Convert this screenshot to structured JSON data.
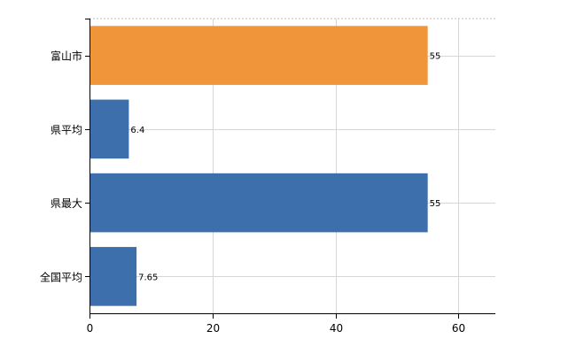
{
  "chart_data": {
    "type": "bar",
    "orientation": "horizontal",
    "categories": [
      "富山市",
      "県平均",
      "県最大",
      "全国平均"
    ],
    "values": [
      55,
      6.4,
      55,
      7.65
    ],
    "data_labels": [
      "55",
      "6.4",
      "55",
      "7.65"
    ],
    "colors": [
      "#f0953a",
      "#3d6fad",
      "#3d6fad",
      "#3d6fad"
    ],
    "xlim": [
      0,
      66
    ],
    "x_ticks": [
      0,
      20,
      40,
      60
    ],
    "x_tick_labels": [
      "0",
      "20",
      "40",
      "60"
    ],
    "grid": true,
    "title": "",
    "xlabel": "",
    "ylabel": ""
  }
}
